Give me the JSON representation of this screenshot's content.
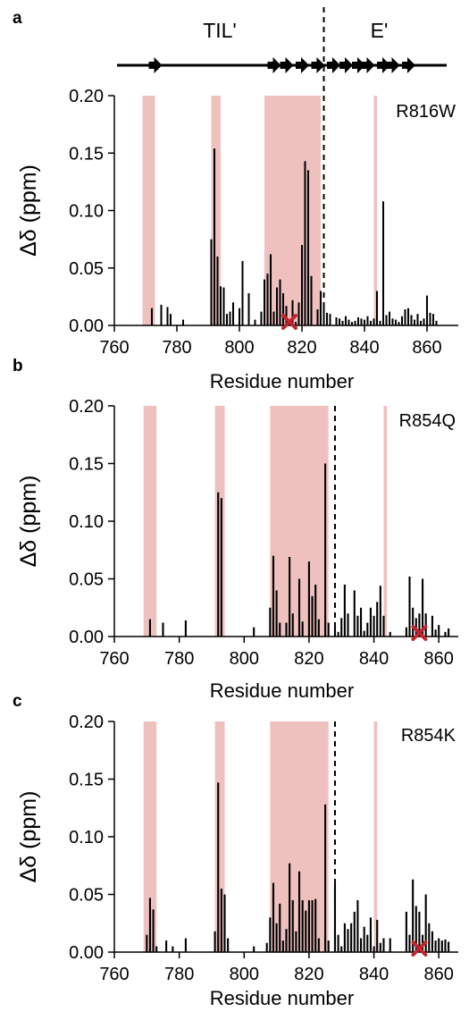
{
  "top_strip": {
    "regions": [
      {
        "label": "TIL'",
        "center_residue": 808
      },
      {
        "label": "E'",
        "center_residue": 847
      }
    ],
    "boundary_residue": 827,
    "arrow_residues": [
      773,
      811,
      815,
      820,
      825,
      830,
      834,
      838,
      841,
      846,
      849,
      854
    ]
  },
  "chart_data": [
    {
      "type": "bar",
      "panel": "a",
      "label": "R816W",
      "xlabel": "Residue number",
      "ylabel": "Δδ (ppm)",
      "xlim": [
        760,
        870
      ],
      "ylim": [
        0,
        0.2
      ],
      "xticks": [
        760,
        780,
        800,
        820,
        840,
        860
      ],
      "yticks": [
        "0.00",
        "0.05",
        "0.10",
        "0.15",
        "0.20"
      ],
      "shaded_ranges": [
        [
          769,
          773
        ],
        [
          791,
          794
        ],
        [
          808,
          826
        ],
        [
          843,
          844
        ]
      ],
      "boundary": 827,
      "mutation_site": 816,
      "x": [
        772,
        775,
        777,
        778,
        782,
        791,
        792,
        793,
        794,
        795,
        796,
        797,
        798,
        800,
        801,
        803,
        805,
        807,
        808,
        809,
        810,
        811,
        812,
        813,
        814,
        815,
        816,
        817,
        818,
        819,
        820,
        821,
        822,
        823,
        825,
        826,
        827,
        828,
        829,
        831,
        832,
        833,
        834,
        835,
        836,
        837,
        838,
        839,
        840,
        841,
        842,
        843,
        844,
        845,
        846,
        847,
        848,
        849,
        850,
        851,
        852,
        853,
        854,
        855,
        856,
        857,
        858,
        859,
        860,
        861,
        862,
        863
      ],
      "values": [
        0.015,
        0.018,
        0.016,
        0.01,
        0.005,
        0.075,
        0.154,
        0.06,
        0.034,
        0.033,
        0.01,
        0.012,
        0.02,
        0.015,
        0.056,
        0.028,
        0.005,
        0.012,
        0.04,
        0.045,
        0.062,
        0.012,
        0.033,
        0.04,
        0.028,
        0.017,
        0.004,
        0.022,
        0.003,
        0.02,
        0.07,
        0.143,
        0.135,
        0.043,
        0.014,
        0.03,
        0.018,
        0.011,
        0.01,
        0.007,
        0.006,
        0.004,
        0.008,
        0.005,
        0.003,
        0.004,
        0.007,
        0.006,
        0.005,
        0.008,
        0.004,
        0.006,
        0.03,
        0.004,
        0.108,
        0.009,
        0.012,
        0.006,
        0.005,
        0.003,
        0.008,
        0.014,
        0.015,
        0.009,
        0.005,
        0.01,
        0.004,
        0.006,
        0.026,
        0.011,
        0.01,
        0.004
      ]
    },
    {
      "type": "bar",
      "panel": "b",
      "label": "R854Q",
      "xlabel": "Residue number",
      "ylabel": "Δδ (ppm)",
      "xlim": [
        760,
        866
      ],
      "ylim": [
        0,
        0.2
      ],
      "xticks": [
        760,
        780,
        800,
        820,
        840,
        860
      ],
      "yticks": [
        "0.00",
        "0.05",
        "0.10",
        "0.15",
        "0.20"
      ],
      "shaded_ranges": [
        [
          769,
          773
        ],
        [
          791,
          794
        ],
        [
          808,
          826
        ],
        [
          843,
          844
        ]
      ],
      "boundary": 828,
      "mutation_site": 854,
      "x": [
        771,
        775,
        782,
        792,
        793,
        803,
        808,
        809,
        810,
        811,
        813,
        814,
        815,
        817,
        818,
        820,
        821,
        822,
        823,
        825,
        826,
        828,
        829,
        830,
        831,
        832,
        834,
        835,
        836,
        837,
        838,
        839,
        840,
        841,
        842,
        843,
        845,
        850,
        851,
        852,
        853,
        854,
        855,
        856,
        858,
        859,
        860,
        862,
        863
      ],
      "values": [
        0.015,
        0.012,
        0.014,
        0.125,
        0.12,
        0.008,
        0.025,
        0.07,
        0.04,
        0.012,
        0.012,
        0.069,
        0.02,
        0.05,
        0.013,
        0.065,
        0.035,
        0.045,
        0.015,
        0.15,
        0.012,
        0.008,
        0.004,
        0.016,
        0.045,
        0.02,
        0.04,
        0.018,
        0.025,
        0.005,
        0.012,
        0.025,
        0.018,
        0.03,
        0.044,
        0.018,
        0.004,
        0.008,
        0.052,
        0.025,
        0.016,
        0.02,
        0.05,
        0.02,
        0.018,
        0.006,
        0.01,
        0.004,
        0.007
      ]
    },
    {
      "type": "bar",
      "panel": "c",
      "label": "R854K",
      "xlabel": "Residue number",
      "ylabel": "Δδ (ppm)",
      "xlim": [
        760,
        866
      ],
      "ylim": [
        0,
        0.2
      ],
      "xticks": [
        760,
        780,
        800,
        820,
        840,
        860
      ],
      "yticks": [
        "0.00",
        "0.05",
        "0.10",
        "0.15",
        "0.20"
      ],
      "shaded_ranges": [
        [
          769,
          773
        ],
        [
          791,
          794
        ],
        [
          808,
          826
        ],
        [
          840,
          841
        ]
      ],
      "boundary": 828,
      "mutation_site": 854,
      "x": [
        770,
        771,
        772,
        773,
        776,
        778,
        782,
        791,
        792,
        793,
        794,
        795,
        803,
        807,
        808,
        809,
        810,
        811,
        812,
        813,
        814,
        815,
        816,
        817,
        818,
        819,
        820,
        821,
        822,
        823,
        825,
        826,
        828,
        829,
        830,
        831,
        832,
        833,
        834,
        835,
        836,
        837,
        838,
        839,
        840,
        841,
        842,
        843,
        845,
        850,
        851,
        852,
        853,
        854,
        855,
        856,
        857,
        858,
        859,
        860,
        861,
        862,
        863
      ],
      "values": [
        0.015,
        0.047,
        0.037,
        0.005,
        0.01,
        0.005,
        0.012,
        0.018,
        0.147,
        0.055,
        0.05,
        0.012,
        0.005,
        0.008,
        0.03,
        0.06,
        0.025,
        0.042,
        0.01,
        0.02,
        0.077,
        0.045,
        0.018,
        0.07,
        0.045,
        0.036,
        0.045,
        0.045,
        0.046,
        0.012,
        0.128,
        0.01,
        0.06,
        0.015,
        0.005,
        0.025,
        0.02,
        0.025,
        0.035,
        0.045,
        0.012,
        0.022,
        0.015,
        0.03,
        0.005,
        0.028,
        0.008,
        0.012,
        0.012,
        0.035,
        0.015,
        0.063,
        0.04,
        0.035,
        0.015,
        0.05,
        0.025,
        0.018,
        0.01,
        0.012,
        0.01,
        0.011,
        0.009
      ]
    }
  ]
}
